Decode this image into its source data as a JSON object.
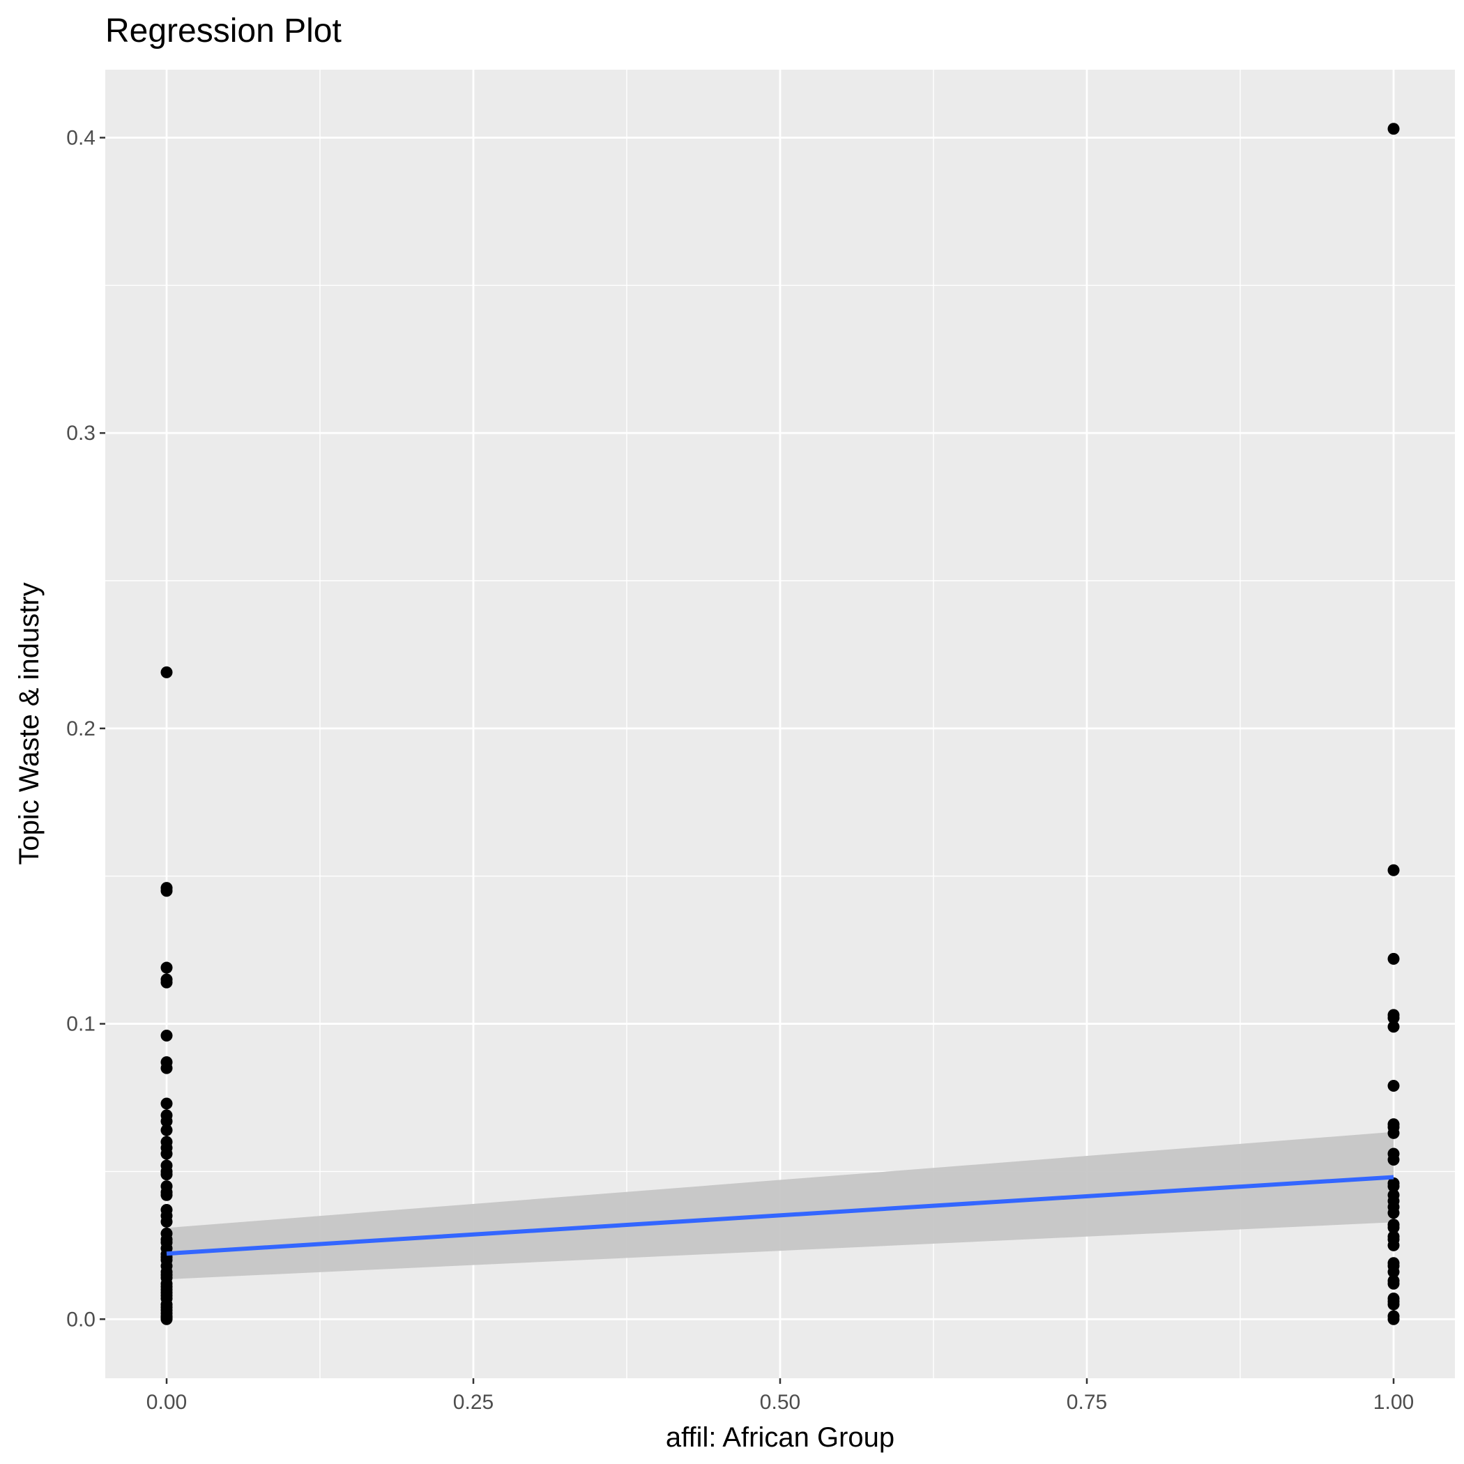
{
  "chart_data": {
    "type": "scatter",
    "title": "Regression Plot",
    "xlabel": "affil: African Group",
    "ylabel": "Topic Waste & industry",
    "xlim": [
      -0.05,
      1.05
    ],
    "ylim": [
      -0.02,
      0.423
    ],
    "x_ticks": [
      0,
      0.25,
      0.5,
      0.75,
      1
    ],
    "x_tick_labels": [
      "0.00",
      "0.25",
      "0.50",
      "0.75",
      "1.00"
    ],
    "y_ticks": [
      0,
      0.1,
      0.2,
      0.3,
      0.4
    ],
    "y_tick_labels": [
      "0.0",
      "0.1",
      "0.2",
      "0.3",
      "0.4"
    ],
    "grid": true,
    "legend": "none",
    "colors": {
      "panel": "#ebebeb",
      "grid": "#ffffff",
      "points": "#000000",
      "fit_line": "#3366ff",
      "confidence_band": "#c6c6c6",
      "tick_text": "#4d4d4d"
    },
    "series": [
      {
        "x": [
          0,
          0,
          0,
          0,
          0,
          0,
          0,
          0,
          0,
          0,
          0,
          0,
          0,
          0,
          0,
          0,
          0,
          0,
          0,
          0,
          0,
          0,
          0,
          0,
          0,
          0,
          0,
          0,
          0,
          0,
          0,
          0,
          0,
          0,
          0,
          0,
          0,
          0,
          0,
          0,
          0,
          0,
          0,
          0,
          0,
          0,
          0,
          0,
          0
        ],
        "y": [
          0.219,
          0.146,
          0.145,
          0.119,
          0.115,
          0.114,
          0.096,
          0.087,
          0.085,
          0.073,
          0.069,
          0.067,
          0.064,
          0.06,
          0.058,
          0.056,
          0.052,
          0.05,
          0.049,
          0.045,
          0.043,
          0.042,
          0.037,
          0.035,
          0.033,
          0.029,
          0.027,
          0.026,
          0.024,
          0.022,
          0.021,
          0.02,
          0.018,
          0.016,
          0.015,
          0.014,
          0.012,
          0.011,
          0.01,
          0.009,
          0.008,
          0.007,
          0.005,
          0.004,
          0.003,
          0.002,
          0.001,
          0.0005,
          0
        ]
      },
      {
        "x": [
          1,
          1,
          1,
          1,
          1,
          1,
          1,
          1,
          1,
          1,
          1,
          1,
          1,
          1,
          1,
          1,
          1,
          1,
          1,
          1,
          1,
          1,
          1,
          1,
          1,
          1,
          1,
          1,
          1,
          1,
          1,
          1,
          1
        ],
        "y": [
          0.403,
          0.152,
          0.122,
          0.103,
          0.102,
          0.099,
          0.079,
          0.066,
          0.065,
          0.063,
          0.056,
          0.054,
          0.046,
          0.045,
          0.042,
          0.04,
          0.038,
          0.036,
          0.032,
          0.031,
          0.028,
          0.027,
          0.025,
          0.019,
          0.018,
          0.016,
          0.013,
          0.012,
          0.007,
          0.006,
          0.005,
          0.001,
          0
        ]
      },
      {
        "type": "line",
        "x": [
          0,
          1
        ],
        "y": [
          0.0222,
          0.0481
        ],
        "band_lower": [
          0.0135,
          0.0328
        ],
        "band_upper": [
          0.0309,
          0.0634
        ]
      }
    ]
  }
}
